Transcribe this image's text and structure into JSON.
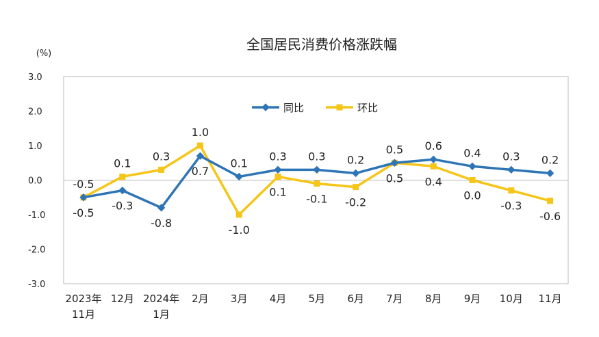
{
  "chart_data": {
    "type": "line",
    "title": "全国居民消费价格涨跌幅",
    "unit": "(%)",
    "ylim": [
      -3.0,
      3.0
    ],
    "yticks": [
      "3.0",
      "2.0",
      "1.0",
      "0.0",
      "-1.0",
      "-2.0",
      "-3.0"
    ],
    "ytick_values": [
      3,
      2,
      1,
      0,
      -1,
      -2,
      -3
    ],
    "categories": [
      [
        "2023年",
        "11月"
      ],
      [
        "12月"
      ],
      [
        "2024年",
        "1月"
      ],
      [
        "2月"
      ],
      [
        "3月"
      ],
      [
        "4月"
      ],
      [
        "5月"
      ],
      [
        "6月"
      ],
      [
        "7月"
      ],
      [
        "8月"
      ],
      [
        "9月"
      ],
      [
        "10月"
      ],
      [
        "11月"
      ]
    ],
    "legend_position": "top-center",
    "series": [
      {
        "name": "同比",
        "color": "#2E75B6",
        "marker": "diamond",
        "values": [
          -0.5,
          -0.3,
          -0.8,
          0.7,
          0.1,
          0.3,
          0.3,
          0.2,
          0.5,
          0.6,
          0.4,
          0.3,
          0.2
        ],
        "labels": [
          "-0.5",
          "-0.3",
          "-0.8",
          "0.7",
          "0.1",
          "0.3",
          "0.3",
          "0.2",
          "0.5",
          "0.6",
          "0.4",
          "0.3",
          "0.2"
        ],
        "label_positions": [
          "below",
          "below",
          "below",
          "below",
          "above",
          "above",
          "above",
          "above",
          "above",
          "above",
          "above",
          "above",
          "above"
        ]
      },
      {
        "name": "环比",
        "color": "#F5C518",
        "marker": "square",
        "values": [
          -0.5,
          0.1,
          0.3,
          1.0,
          -1.0,
          0.1,
          -0.1,
          -0.2,
          0.5,
          0.4,
          0.0,
          -0.3,
          -0.6
        ],
        "labels": [
          "-0.5",
          "0.1",
          "0.3",
          "1.0",
          "-1.0",
          "0.1",
          "-0.1",
          "-0.2",
          "0.5",
          "0.4",
          "0.0",
          "-0.3",
          "-0.6"
        ],
        "label_positions": [
          "above",
          "above",
          "above",
          "above",
          "below",
          "below",
          "below",
          "below",
          "below",
          "below",
          "below",
          "below",
          "below"
        ]
      }
    ]
  }
}
